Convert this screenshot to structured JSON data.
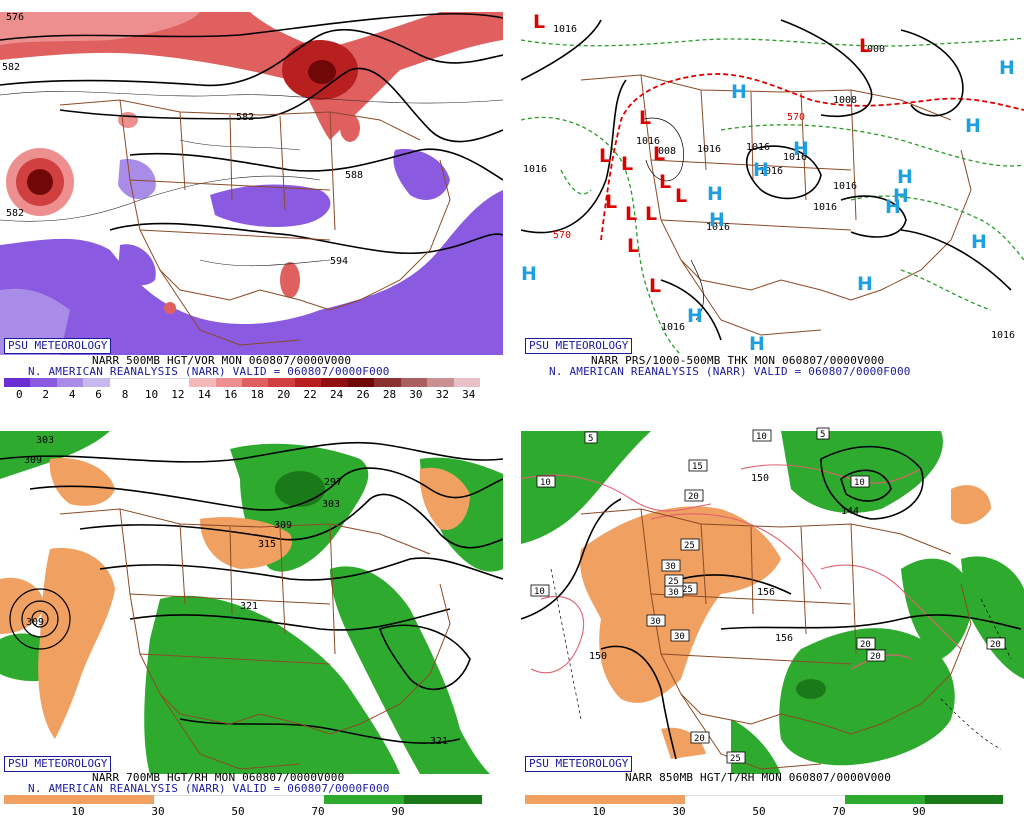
{
  "credit": "PSU METEOROLOGY",
  "panels": {
    "tl": {
      "caption1": "NARR 500MB HGT/VOR MON 060807/0000V000",
      "caption2": "N. AMERICAN REANALYSIS (NARR) VALID = 060807/0000F000",
      "colorbar_ticks": [
        "0",
        "2",
        "4",
        "6",
        "8",
        "10",
        "12",
        "14",
        "16",
        "18",
        "20",
        "22",
        "24",
        "26",
        "28",
        "30",
        "32",
        "34"
      ],
      "colorbar_colors": [
        "#6a2fd0",
        "#8a5ae0",
        "#a88ce8",
        "#c8b8f0",
        "#ffffff",
        "#ffffff",
        "#ffffff",
        "#f4b8b8",
        "#ee8f8f",
        "#e06060",
        "#d04040",
        "#b82020",
        "#901010",
        "#700808",
        "#8a3030",
        "#a86060",
        "#c89090",
        "#e8c0c8"
      ],
      "contour_labels": [
        "576",
        "582",
        "582",
        "588",
        "588",
        "594"
      ]
    },
    "tr": {
      "caption1": "NARR PRS/1000-500MB THK MON 060807/0000V000",
      "caption2": "N. AMERICAN REANALYSIS (NARR) VALID = 060807/0000F000",
      "contour_labels": [
        "1016",
        "1016",
        "1008",
        "1016",
        "1016",
        "1016",
        "1016",
        "1008",
        "1016",
        "1016",
        "1016",
        "1000",
        "1016",
        "570",
        "570"
      ],
      "pressure_centers": [
        "L",
        "L",
        "L",
        "L",
        "L",
        "L",
        "L",
        "L",
        "L",
        "L",
        "L",
        "L",
        "L",
        "H",
        "H",
        "H",
        "H",
        "H",
        "H",
        "H",
        "H",
        "H",
        "H",
        "H",
        "H",
        "H",
        "H",
        "H"
      ]
    },
    "bl": {
      "caption1": "NARR 700MB HGT/RH MON 060807/0000V000",
      "caption2": "N. AMERICAN REANALYSIS (NARR) VALID = 060807/0000F000",
      "colorbar_ticks": [
        "10",
        "30",
        "50",
        "70",
        "90"
      ],
      "contour_labels": [
        "303",
        "309",
        "309",
        "315",
        "303",
        "321",
        "309",
        "321",
        "297"
      ]
    },
    "br": {
      "caption1": "NARR 850MB HGT/T/RH MON 060807/0000V000",
      "colorbar_ticks": [
        "10",
        "30",
        "50",
        "70",
        "90"
      ],
      "contour_labels": [
        "150",
        "150",
        "156",
        "156",
        "144"
      ],
      "temp_labels": [
        "5",
        "5",
        "10",
        "10",
        "15",
        "10",
        "20",
        "25",
        "30",
        "25",
        "30",
        "30",
        "30",
        "25",
        "20",
        "20",
        "20",
        "10",
        "20",
        "25"
      ]
    }
  },
  "colors": {
    "credit_blue": "#1a1aa0",
    "border_brown": "#8b4a26",
    "rh_green": "#2eab2e",
    "rh_dark_green": "#1a7a1a",
    "rh_orange": "#f0a060",
    "vor_purple": "#8a5ae0",
    "vor_red": "#e06060",
    "low_red": "#dd0000",
    "high_blue": "#1ea0e0",
    "thick_red": "#dd0000",
    "thick_green": "#2a9a2a",
    "temp_red": "#e06070"
  }
}
